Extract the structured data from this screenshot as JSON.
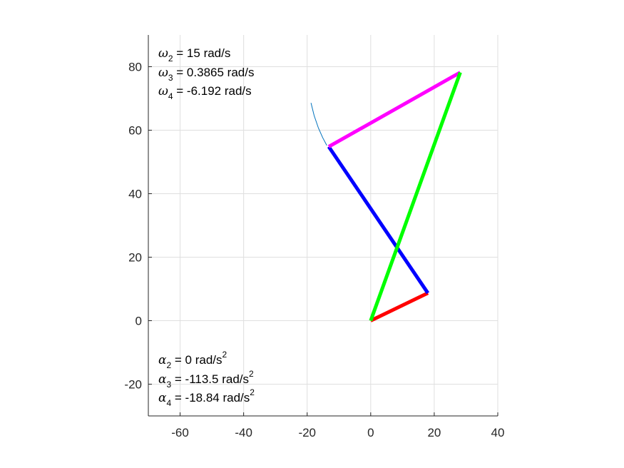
{
  "chart_data": {
    "type": "line",
    "xlim": [
      -70,
      40
    ],
    "ylim": [
      -30,
      90
    ],
    "grid": true,
    "x_ticks": [
      -60,
      -40,
      -20,
      0,
      20,
      40
    ],
    "y_ticks": [
      -20,
      0,
      20,
      40,
      60,
      80
    ],
    "x_tick_labels": [
      "-60",
      "-40",
      "-20",
      "0",
      "20",
      "40"
    ],
    "y_tick_labels": [
      "-20",
      "0",
      "20",
      "40",
      "60",
      "80"
    ],
    "series": [
      {
        "id": "link2",
        "color": "#ff0000",
        "x": [
          0,
          18
        ],
        "y": [
          0,
          8.7
        ]
      },
      {
        "id": "link3",
        "color": "#0000ff",
        "x": [
          18,
          -13.2
        ],
        "y": [
          8.7,
          54.8
        ]
      },
      {
        "id": "link4",
        "color": "#ff00ff",
        "x": [
          -13.2,
          28.2
        ],
        "y": [
          54.8,
          78.2
        ]
      },
      {
        "id": "link1",
        "color": "#00ff00",
        "x": [
          0,
          28.2
        ],
        "y": [
          0,
          78.2
        ]
      },
      {
        "id": "path",
        "color": "#0072bd",
        "x": [
          -18.8,
          -17.8,
          -16.5,
          -15.1,
          -13.8
        ],
        "y": [
          68.6,
          64.6,
          60.8,
          57.6,
          55.2
        ]
      }
    ],
    "annotations": {
      "omega": [
        {
          "symbol": "ω",
          "sub": "2",
          "text": " = 15 rad/s",
          "sup": ""
        },
        {
          "symbol": "ω",
          "sub": "3",
          "text": " = 0.3865 rad/s",
          "sup": ""
        },
        {
          "symbol": "ω",
          "sub": "4",
          "text": " = -6.192 rad/s",
          "sup": ""
        }
      ],
      "alpha": [
        {
          "symbol": "α",
          "sub": "2",
          "text": " = 0 rad/s",
          "sup": "2"
        },
        {
          "symbol": "α",
          "sub": "3",
          "text": " = -113.5 rad/s",
          "sup": "2"
        },
        {
          "symbol": "α",
          "sub": "4",
          "text": " = -18.84 rad/s",
          "sup": "2"
        }
      ]
    }
  }
}
